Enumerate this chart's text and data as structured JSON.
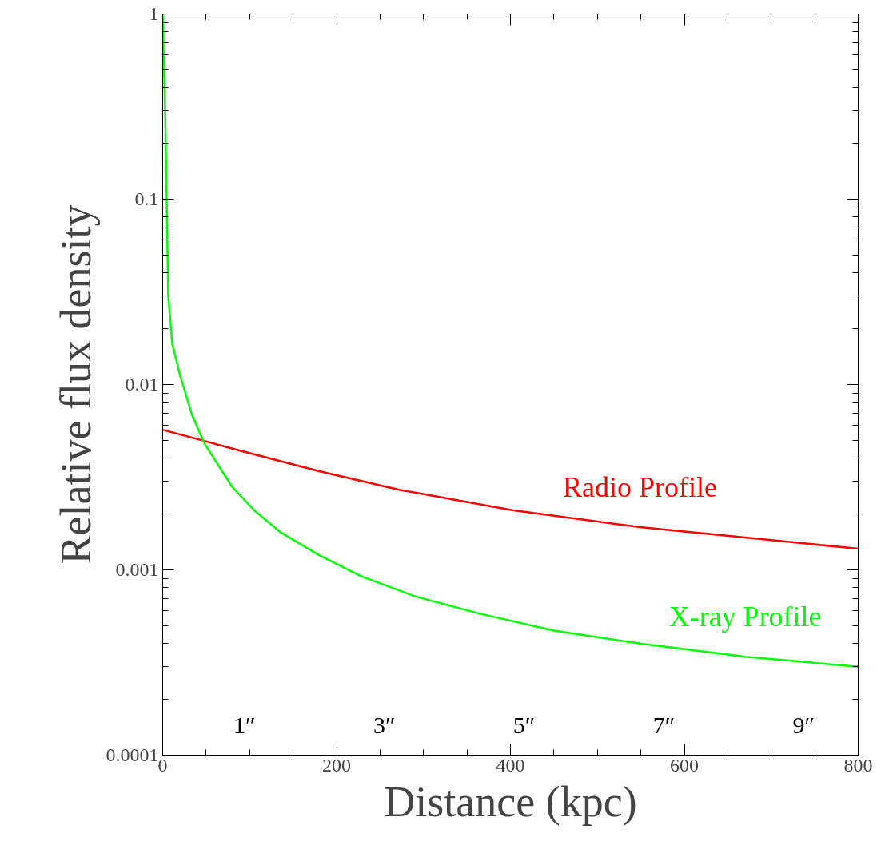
{
  "chart_data": {
    "type": "line",
    "xlabel": "Distance (kpc)",
    "ylabel": "Relative flux density",
    "log": "y",
    "grid": false,
    "xlim": [
      0,
      800
    ],
    "xticks": [
      0,
      200,
      400,
      600,
      800
    ],
    "ylim": [
      0.0001,
      1
    ],
    "yticks": [
      {
        "value": 0.0001,
        "label": "0.0001"
      },
      {
        "value": 0.001,
        "label": "0.001"
      },
      {
        "value": 0.01,
        "label": "0.01"
      },
      {
        "value": 0.1,
        "label": "0.1"
      },
      {
        "value": 1,
        "label": "1"
      }
    ],
    "x2lim": [
      -0.17,
      9.78
    ],
    "x2ticks": [
      {
        "value": 1,
        "label": "1″"
      },
      {
        "value": 3,
        "label": "3″"
      },
      {
        "value": 5,
        "label": "5″"
      },
      {
        "value": 7,
        "label": "7″"
      },
      {
        "value": 9,
        "label": "9″"
      }
    ],
    "series": [
      {
        "name": "Radio Profile",
        "color": "#ff0000",
        "x": [
          0,
          89,
          181,
          273,
          402,
          549,
          800
        ],
        "values": [
          0.0057,
          0.0044,
          0.0034,
          0.0027,
          0.0021,
          0.0017,
          0.0013
        ]
      },
      {
        "name": "X-ray Profile",
        "color": "#00ff00",
        "x": [
          0,
          3,
          4.6,
          6.4,
          11,
          20,
          34,
          48,
          65,
          80,
          105,
          135,
          180,
          227,
          290,
          365,
          450,
          549,
          670,
          800
        ],
        "values": [
          1,
          0.27,
          0.1,
          0.03,
          0.0166,
          0.0112,
          0.0068,
          0.0048,
          0.0036,
          0.0028,
          0.0021,
          0.0016,
          0.0012,
          0.00093,
          0.00072,
          0.00058,
          0.00047,
          0.0004,
          0.00034,
          0.0003
        ]
      }
    ]
  }
}
